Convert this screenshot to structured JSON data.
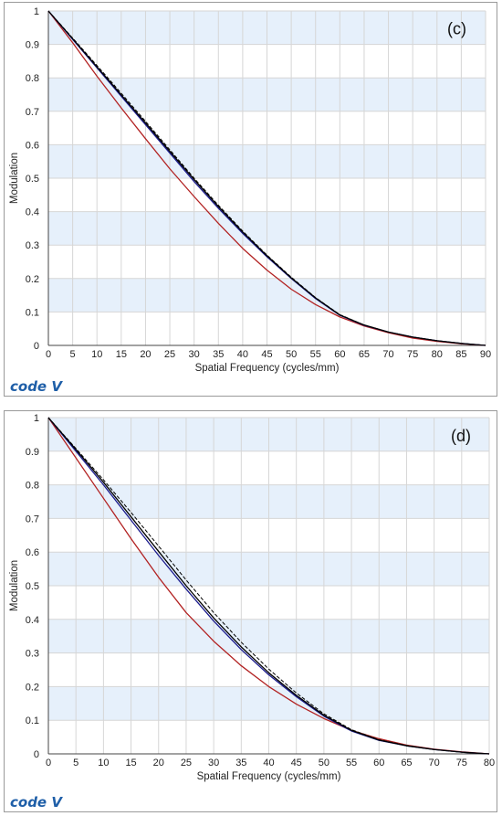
{
  "branding": {
    "logo_text": "code V"
  },
  "colors": {
    "band": "#e6f0fb",
    "grid": "#d6d6d6",
    "red": "#b22222",
    "navy": "#1a1a8c",
    "black": "#000000"
  },
  "chart_data": [
    {
      "type": "line",
      "annotation": "(c)",
      "xlabel": "Spatial Frequency (cycles/mm)",
      "ylabel": "Modulation",
      "xlim": [
        0,
        90
      ],
      "ylim": [
        0,
        1
      ],
      "xticks": [
        0,
        5,
        10,
        15,
        20,
        25,
        30,
        35,
        40,
        45,
        50,
        55,
        60,
        65,
        70,
        75,
        80,
        85,
        90
      ],
      "yticks": [
        0,
        0.1,
        0.2,
        0.3,
        0.4,
        0.5,
        0.6,
        0.7,
        0.8,
        0.9,
        1
      ],
      "shaded_bands": true,
      "grid": true,
      "series": [
        {
          "color": "#b22222",
          "style": "solid",
          "x": [
            0,
            5,
            10,
            15,
            20,
            25,
            30,
            35,
            40,
            45,
            50,
            55,
            60,
            65,
            70,
            75,
            80,
            85,
            90
          ],
          "y": [
            1,
            0.905,
            0.805,
            0.71,
            0.618,
            0.528,
            0.445,
            0.365,
            0.29,
            0.225,
            0.168,
            0.122,
            0.085,
            0.058,
            0.038,
            0.022,
            0.012,
            0.005,
            0
          ]
        },
        {
          "color": "#1a1a8c",
          "style": "solid",
          "x": [
            0,
            5,
            10,
            15,
            20,
            25,
            30,
            35,
            40,
            45,
            50,
            55,
            60,
            65,
            70,
            75,
            80,
            85,
            90
          ],
          "y": [
            1,
            0.915,
            0.83,
            0.745,
            0.66,
            0.575,
            0.49,
            0.41,
            0.335,
            0.265,
            0.2,
            0.14,
            0.09,
            0.06,
            0.04,
            0.025,
            0.014,
            0.006,
            0
          ]
        },
        {
          "color": "#000000",
          "style": "solid",
          "x": [
            0,
            5,
            10,
            15,
            20,
            25,
            30,
            35,
            40,
            45,
            50,
            55,
            60,
            65,
            70,
            75,
            80,
            85,
            90
          ],
          "y": [
            1,
            0.917,
            0.833,
            0.749,
            0.665,
            0.58,
            0.496,
            0.415,
            0.339,
            0.268,
            0.202,
            0.142,
            0.091,
            0.061,
            0.04,
            0.025,
            0.014,
            0.006,
            0
          ]
        },
        {
          "color": "#000000",
          "style": "dashed",
          "x": [
            0,
            5,
            10,
            15,
            20,
            25,
            30,
            35,
            40,
            45,
            50,
            55,
            60,
            65,
            70,
            75,
            80,
            85,
            90
          ],
          "y": [
            1,
            0.919,
            0.837,
            0.754,
            0.67,
            0.585,
            0.5,
            0.419,
            0.342,
            0.27,
            0.204,
            0.143,
            0.092,
            0.061,
            0.04,
            0.025,
            0.014,
            0.006,
            0
          ]
        }
      ]
    },
    {
      "type": "line",
      "annotation": "(d)",
      "xlabel": "Spatial Frequency (cycles/mm)",
      "ylabel": "Modulation",
      "xlim": [
        0,
        80
      ],
      "ylim": [
        0,
        1
      ],
      "xticks": [
        0,
        5,
        10,
        15,
        20,
        25,
        30,
        35,
        40,
        45,
        50,
        55,
        60,
        65,
        70,
        75,
        80
      ],
      "yticks": [
        0,
        0.1,
        0.2,
        0.3,
        0.4,
        0.5,
        0.6,
        0.7,
        0.8,
        0.9,
        1
      ],
      "shaded_bands": true,
      "grid": true,
      "series": [
        {
          "color": "#b22222",
          "style": "solid",
          "x": [
            0,
            5,
            10,
            15,
            20,
            25,
            30,
            35,
            40,
            45,
            50,
            55,
            60,
            65,
            70,
            75,
            80
          ],
          "y": [
            1,
            0.88,
            0.76,
            0.64,
            0.525,
            0.42,
            0.335,
            0.262,
            0.2,
            0.148,
            0.105,
            0.07,
            0.045,
            0.026,
            0.014,
            0.006,
            0
          ]
        },
        {
          "color": "#1a1a8c",
          "style": "solid",
          "x": [
            0,
            5,
            10,
            15,
            20,
            25,
            30,
            35,
            40,
            45,
            50,
            55,
            60,
            65,
            70,
            75,
            80
          ],
          "y": [
            1,
            0.9,
            0.8,
            0.695,
            0.59,
            0.49,
            0.395,
            0.31,
            0.235,
            0.17,
            0.112,
            0.068,
            0.04,
            0.024,
            0.013,
            0.005,
            0
          ]
        },
        {
          "color": "#000000",
          "style": "solid",
          "x": [
            0,
            5,
            10,
            15,
            20,
            25,
            30,
            35,
            40,
            45,
            50,
            55,
            60,
            65,
            70,
            75,
            80
          ],
          "y": [
            1,
            0.905,
            0.808,
            0.705,
            0.602,
            0.5,
            0.404,
            0.318,
            0.241,
            0.174,
            0.115,
            0.07,
            0.041,
            0.024,
            0.013,
            0.005,
            0
          ]
        },
        {
          "color": "#000000",
          "style": "dashed",
          "x": [
            0,
            5,
            10,
            15,
            20,
            25,
            30,
            35,
            40,
            45,
            50,
            55,
            60,
            65,
            70,
            75,
            80
          ],
          "y": [
            1,
            0.908,
            0.815,
            0.718,
            0.618,
            0.517,
            0.42,
            0.332,
            0.252,
            0.181,
            0.119,
            0.072,
            0.042,
            0.025,
            0.013,
            0.005,
            0
          ]
        }
      ]
    }
  ]
}
